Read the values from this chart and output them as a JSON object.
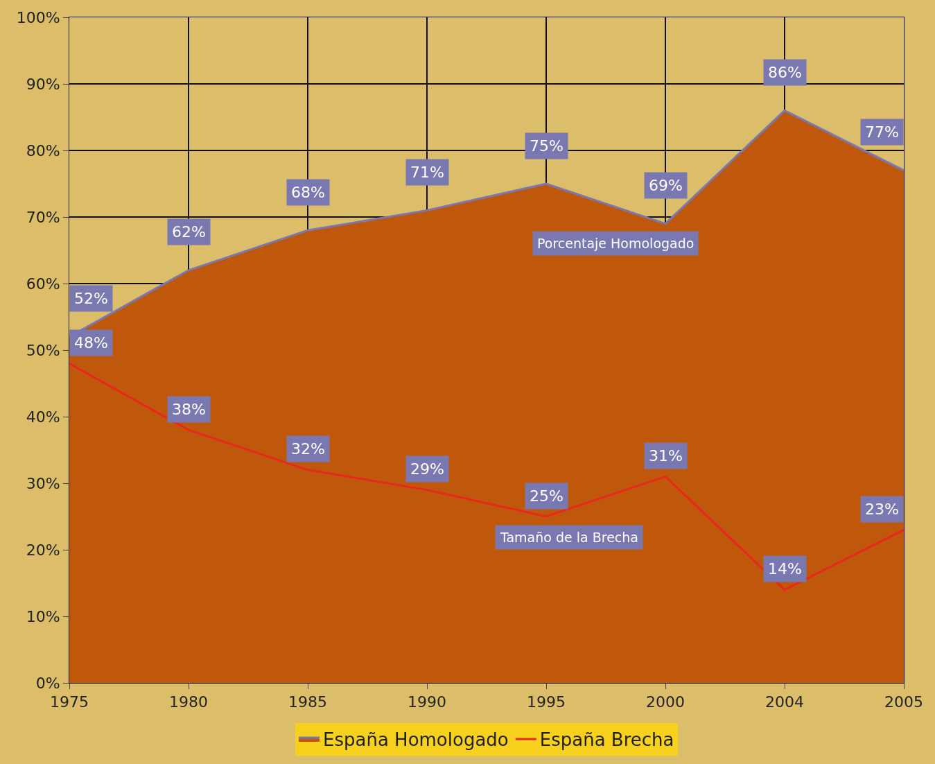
{
  "chart_data": {
    "type": "area",
    "categories": [
      "1975",
      "1980",
      "1985",
      "1990",
      "1995",
      "2000",
      "2004",
      "2005"
    ],
    "series": [
      {
        "name": "España Homologado",
        "color": "#c0580c",
        "values": [
          52,
          62,
          68,
          71,
          75,
          69,
          86,
          77
        ],
        "value_labels": [
          "52%",
          "62%",
          "68%",
          "71%",
          "75%",
          "69%",
          "86%",
          "77%"
        ]
      },
      {
        "name": "España Brecha",
        "type": "line",
        "color": "#e8281e",
        "values": [
          48,
          38,
          32,
          29,
          25,
          31,
          14,
          23
        ],
        "value_labels": [
          "48%",
          "38%",
          "32%",
          "29%",
          "25%",
          "31%",
          "14%",
          "23%"
        ]
      }
    ],
    "ylim": [
      0,
      100
    ],
    "yticks": [
      {
        "value": 0,
        "label": "0%"
      },
      {
        "value": 10,
        "label": "10%"
      },
      {
        "value": 20,
        "label": "20%"
      },
      {
        "value": 30,
        "label": "30%"
      },
      {
        "value": 40,
        "label": "40%"
      },
      {
        "value": 50,
        "label": "50%"
      },
      {
        "value": 60,
        "label": "60%"
      },
      {
        "value": 70,
        "label": "70%"
      },
      {
        "value": 80,
        "label": "80%"
      },
      {
        "value": 90,
        "label": "90%"
      },
      {
        "value": 100,
        "label": "100%"
      }
    ],
    "annotations": [
      "Porcentaje Homologado",
      "Tamaño de la Brecha"
    ],
    "grid": true,
    "legend": "bottom"
  }
}
